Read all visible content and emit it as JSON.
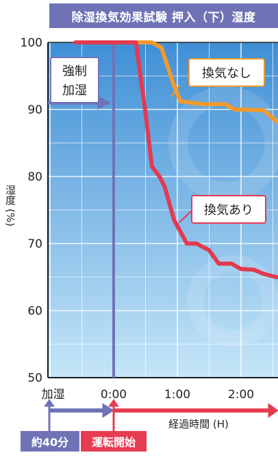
{
  "title": "除湿換気効果試験 押入（下）湿度",
  "annotations": {
    "forced_humidify": [
      "強制",
      "加湿"
    ],
    "no_vent": "換気なし",
    "with_vent": "換気あり"
  },
  "badges": {
    "prep_time": "約40分",
    "operation_start": "運転開始"
  },
  "colors": {
    "title_bg": "#6f73b6",
    "plot_bg_top": "#3f8fd6",
    "plot_bg_bottom": "#c6e6f8",
    "no_vent_line": "#f29a2e",
    "with_vent_line": "#e23a50",
    "humidify_line": "#6f73b6",
    "operation_arrow": "#e63c52"
  },
  "chart_data": {
    "type": "line",
    "title": "除湿換気効果試験 押入（下）湿度",
    "ylabel": "湿度 (%)",
    "xlabel": "経過時間 (H)",
    "ylim": [
      50,
      100
    ],
    "yticks": [
      "100",
      "90",
      "80",
      "70",
      "60",
      "50"
    ],
    "xticks": [
      "加湿",
      "0:00",
      "1:00",
      "2:00"
    ],
    "grid": true,
    "series": [
      {
        "name": "換気なし",
        "points": [
          [
            0,
            100
          ],
          [
            0.6,
            100
          ],
          [
            0.75,
            99.2
          ],
          [
            0.95,
            93.5
          ],
          [
            1.05,
            91.2
          ],
          [
            1.4,
            90.8
          ],
          [
            1.75,
            90.8
          ],
          [
            1.9,
            90
          ],
          [
            2.35,
            89.9
          ],
          [
            2.55,
            88.3
          ],
          [
            2.7,
            88.1
          ]
        ]
      },
      {
        "name": "換気あり",
        "points": [
          [
            -0.6,
            100
          ],
          [
            0.35,
            100
          ],
          [
            0.5,
            89.5
          ],
          [
            0.6,
            81.5
          ],
          [
            0.72,
            80
          ],
          [
            0.8,
            78.5
          ],
          [
            0.95,
            73.5
          ],
          [
            1.15,
            70
          ],
          [
            1.3,
            70
          ],
          [
            1.5,
            69
          ],
          [
            1.65,
            67
          ],
          [
            1.85,
            67
          ],
          [
            2.0,
            66.2
          ],
          [
            2.2,
            66.1
          ],
          [
            2.35,
            65.5
          ],
          [
            2.55,
            65
          ],
          [
            2.7,
            65
          ]
        ]
      }
    ],
    "humidify_marker": {
      "time": 0,
      "level": 91
    }
  }
}
